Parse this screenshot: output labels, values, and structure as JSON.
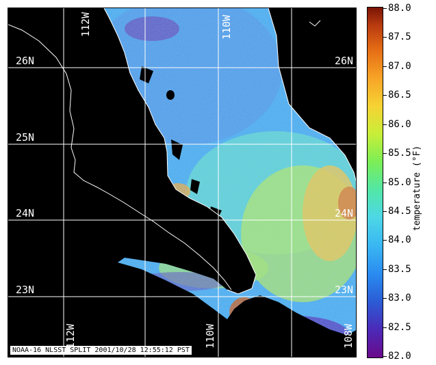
{
  "map": {
    "caption": "NOAA-16 NLSST SPLIT 2001/10/28 12:55:12 PST",
    "lat_labels_left": [
      "26N",
      "25N",
      "24N",
      "23N"
    ],
    "lat_labels_right": [
      "26N",
      "24N",
      "23N"
    ],
    "lon_labels_top": [
      "112W",
      "110W"
    ],
    "lon_labels_bottom": [
      "112W",
      "110W",
      "108W"
    ],
    "colors": {
      "land": "#000000",
      "coastline": "#ffffff",
      "grid": "#ffffff"
    }
  },
  "colorbar": {
    "title": "temperature (°F)",
    "ticks": [
      "88.0",
      "87.5",
      "87.0",
      "86.5",
      "86.0",
      "85.5",
      "85.0",
      "84.5",
      "84.0",
      "83.5",
      "83.0",
      "82.5",
      "82.0"
    ],
    "range_min": 82.0,
    "range_max": 88.0,
    "colormap": [
      "#6a0a8a",
      "#2b5cd6",
      "#39b7f2",
      "#52e7a6",
      "#c9ee38",
      "#f7a326",
      "#7a1405"
    ]
  }
}
